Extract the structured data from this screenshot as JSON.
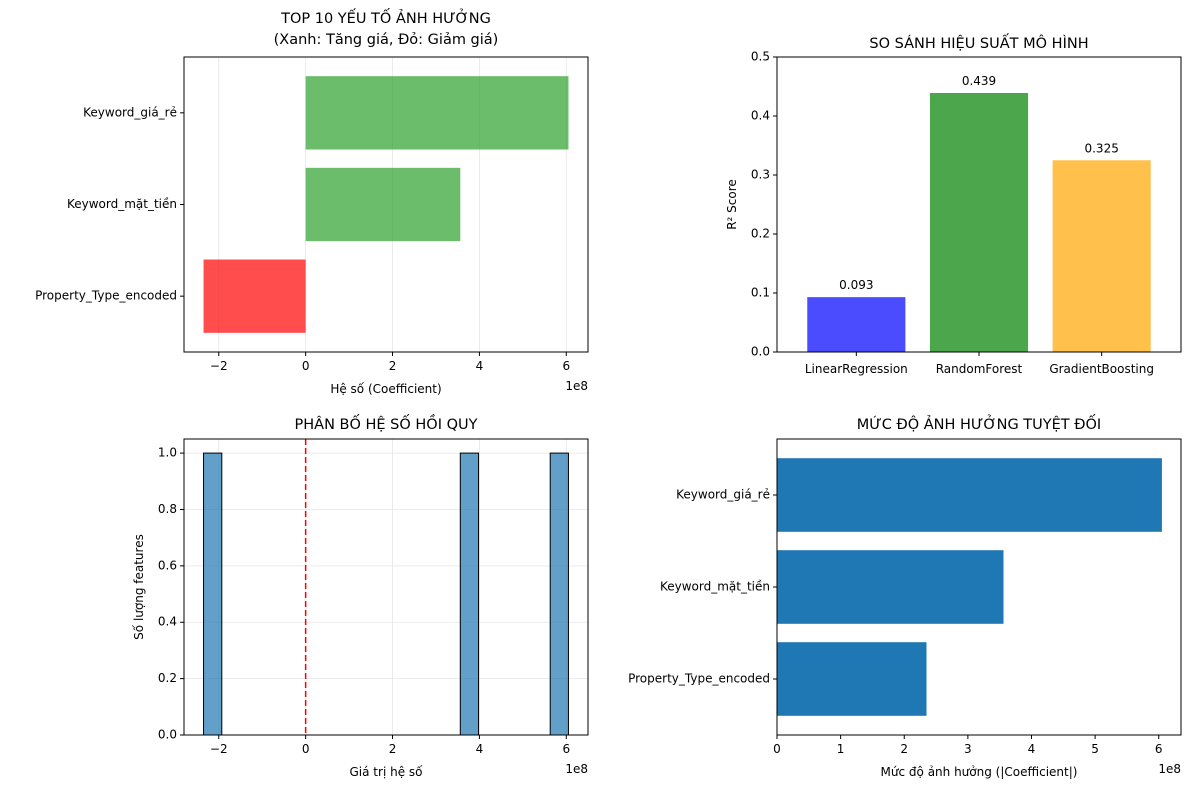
{
  "chart_data": [
    {
      "type": "bar",
      "orientation": "horizontal",
      "title": "TOP 10 YẾU TỐ ẢNH HƯỞNG\n(Xanh: Tăng giá, Đỏ: Giảm giá)",
      "xlabel": "Hệ số (Coefficient)",
      "ylabel": "",
      "x_offset_label": "1e8",
      "categories": [
        "Keyword_giá_rẻ",
        "Keyword_mặt_tiền",
        "Property_Type_encoded"
      ],
      "values": [
        6.05,
        3.56,
        -2.35
      ],
      "colors": [
        "#2ca02c",
        "#2ca02c",
        "#ff0000"
      ],
      "xlim": [
        -2.8,
        6.5
      ],
      "xticks": [
        -2,
        0,
        2,
        4,
        6
      ],
      "xtick_labels": [
        "−2",
        "0",
        "2",
        "4",
        "6"
      ],
      "grid": true
    },
    {
      "type": "bar",
      "title": "SO SÁNH HIỆU SUẤT MÔ HÌNH",
      "xlabel": "",
      "ylabel": "R² Score",
      "categories": [
        "LinearRegression",
        "RandomForest",
        "GradientBoosting"
      ],
      "values": [
        0.093,
        0.439,
        0.325
      ],
      "value_labels": [
        "0.093",
        "0.439",
        "0.325"
      ],
      "colors": [
        "#0000ff",
        "#008000",
        "#ffa500"
      ],
      "ylim": [
        0,
        0.5
      ],
      "yticks": [
        0.0,
        0.1,
        0.2,
        0.3,
        0.4,
        0.5
      ],
      "ytick_labels": [
        "0.0",
        "0.1",
        "0.2",
        "0.3",
        "0.4",
        "0.5"
      ],
      "grid": false
    },
    {
      "type": "histogram",
      "title": "PHÂN BỐ HỆ SỐ HỒI QUY",
      "xlabel": "Giá trị hệ số",
      "ylabel": "Số lượng features",
      "x_offset_label": "1e8",
      "bins": [
        {
          "start": -2.35,
          "end": -1.93,
          "count": 1
        },
        {
          "start": 3.56,
          "end": 3.98,
          "count": 1
        },
        {
          "start": 5.63,
          "end": 6.05,
          "count": 1
        }
      ],
      "vline": 0,
      "vline_color": "#ff0000",
      "bar_color": "#1f77b4",
      "xlim": [
        -2.8,
        6.5
      ],
      "ylim": [
        0,
        1.05
      ],
      "xticks": [
        -2,
        0,
        2,
        4,
        6
      ],
      "xtick_labels": [
        "−2",
        "0",
        "2",
        "4",
        "6"
      ],
      "yticks": [
        0.0,
        0.2,
        0.4,
        0.6,
        0.8,
        1.0
      ],
      "ytick_labels": [
        "0.0",
        "0.2",
        "0.4",
        "0.6",
        "0.8",
        "1.0"
      ],
      "grid": true
    },
    {
      "type": "bar",
      "orientation": "horizontal",
      "title": "MỨC ĐỘ ẢNH HƯỞNG TUYỆT ĐỐI",
      "xlabel": "Mức độ ảnh hưởng (|Coefficient|)",
      "ylabel": "",
      "x_offset_label": "1e8",
      "categories": [
        "Keyword_giá_rẻ",
        "Keyword_mặt_tiền",
        "Property_Type_encoded"
      ],
      "values": [
        6.05,
        3.56,
        2.35
      ],
      "colors": [
        "#1f77b4",
        "#1f77b4",
        "#1f77b4"
      ],
      "xlim": [
        0,
        6.35
      ],
      "xticks": [
        0,
        1,
        2,
        3,
        4,
        5,
        6
      ],
      "xtick_labels": [
        "0",
        "1",
        "2",
        "3",
        "4",
        "5",
        "6"
      ],
      "grid": false
    }
  ]
}
